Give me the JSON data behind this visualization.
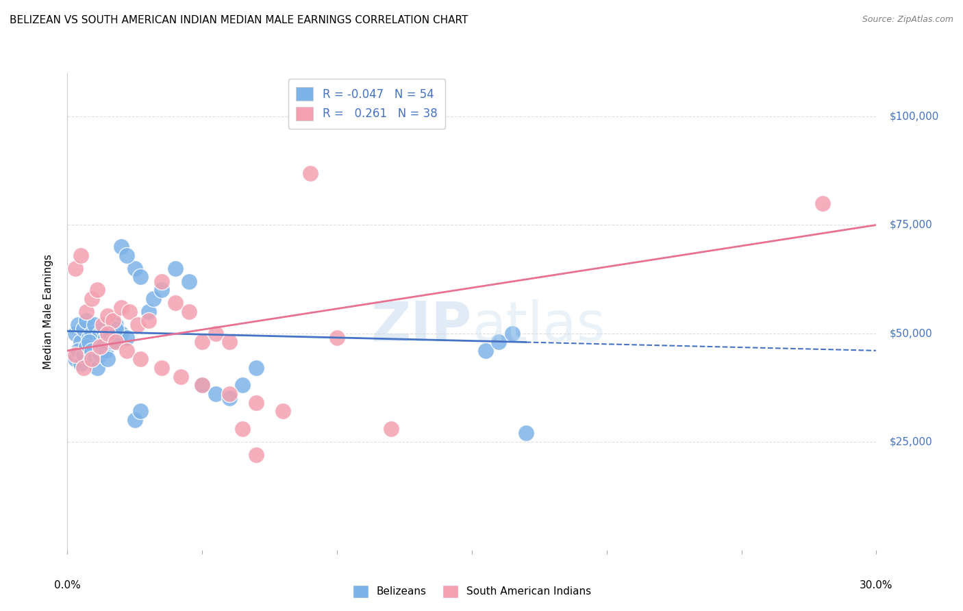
{
  "title": "BELIZEAN VS SOUTH AMERICAN INDIAN MEDIAN MALE EARNINGS CORRELATION CHART",
  "source": "Source: ZipAtlas.com",
  "ylabel": "Median Male Earnings",
  "xlim": [
    0.0,
    0.3
  ],
  "ylim": [
    0,
    110000
  ],
  "yticks": [
    25000,
    50000,
    75000,
    100000
  ],
  "ytick_labels": [
    "$25,000",
    "$50,000",
    "$75,000",
    "$100,000"
  ],
  "xticks": [
    0.0,
    0.05,
    0.1,
    0.15,
    0.2,
    0.25,
    0.3
  ],
  "blue_color": "#7EB3E8",
  "pink_color": "#F4A0B0",
  "blue_line_color": "#4472C4",
  "pink_line_color": "#E87090",
  "label_color": "#4472C4",
  "R_blue": "-0.047",
  "N_blue": "54",
  "R_pink": "0.261",
  "N_pink": "38",
  "background_color": "#FFFFFF",
  "grid_color": "#DDDDDD",
  "blue_points_x": [
    0.003,
    0.004,
    0.005,
    0.006,
    0.007,
    0.008,
    0.009,
    0.01,
    0.011,
    0.012,
    0.013,
    0.014,
    0.015,
    0.016,
    0.017,
    0.018,
    0.02,
    0.022,
    0.025,
    0.027,
    0.03,
    0.032,
    0.035,
    0.04,
    0.045,
    0.05,
    0.055,
    0.06,
    0.065,
    0.07,
    0.003,
    0.004,
    0.005,
    0.006,
    0.007,
    0.008,
    0.009,
    0.01,
    0.011,
    0.012,
    0.013,
    0.014,
    0.015,
    0.016,
    0.017,
    0.018,
    0.02,
    0.022,
    0.025,
    0.027,
    0.155,
    0.16,
    0.165,
    0.17
  ],
  "blue_points_y": [
    50000,
    52000,
    48000,
    51000,
    53000,
    49000,
    50000,
    52000,
    47000,
    50000,
    51000,
    49000,
    50000,
    48000,
    51000,
    52000,
    50000,
    49000,
    65000,
    63000,
    55000,
    58000,
    60000,
    65000,
    62000,
    38000,
    36000,
    35000,
    38000,
    42000,
    44000,
    46000,
    43000,
    45000,
    47000,
    48000,
    46000,
    44000,
    42000,
    45000,
    47000,
    46000,
    44000,
    50000,
    48000,
    51000,
    70000,
    68000,
    30000,
    32000,
    46000,
    48000,
    50000,
    27000
  ],
  "pink_points_x": [
    0.003,
    0.005,
    0.007,
    0.009,
    0.011,
    0.013,
    0.015,
    0.017,
    0.02,
    0.023,
    0.026,
    0.03,
    0.035,
    0.04,
    0.045,
    0.05,
    0.055,
    0.06,
    0.065,
    0.07,
    0.003,
    0.006,
    0.009,
    0.012,
    0.015,
    0.018,
    0.022,
    0.027,
    0.035,
    0.042,
    0.05,
    0.06,
    0.07,
    0.08,
    0.09,
    0.1,
    0.28,
    0.12
  ],
  "pink_points_y": [
    65000,
    68000,
    55000,
    58000,
    60000,
    52000,
    54000,
    53000,
    56000,
    55000,
    52000,
    53000,
    62000,
    57000,
    55000,
    48000,
    50000,
    48000,
    28000,
    22000,
    45000,
    42000,
    44000,
    47000,
    50000,
    48000,
    46000,
    44000,
    42000,
    40000,
    38000,
    36000,
    34000,
    32000,
    87000,
    49000,
    80000,
    28000
  ],
  "blue_line_x0": 0.0,
  "blue_line_x1": 0.3,
  "blue_line_y0": 50500,
  "blue_line_y1": 46000,
  "blue_line_break": 0.17,
  "pink_line_x0": 0.0,
  "pink_line_x1": 0.3,
  "pink_line_y0": 46000,
  "pink_line_y1": 75000
}
